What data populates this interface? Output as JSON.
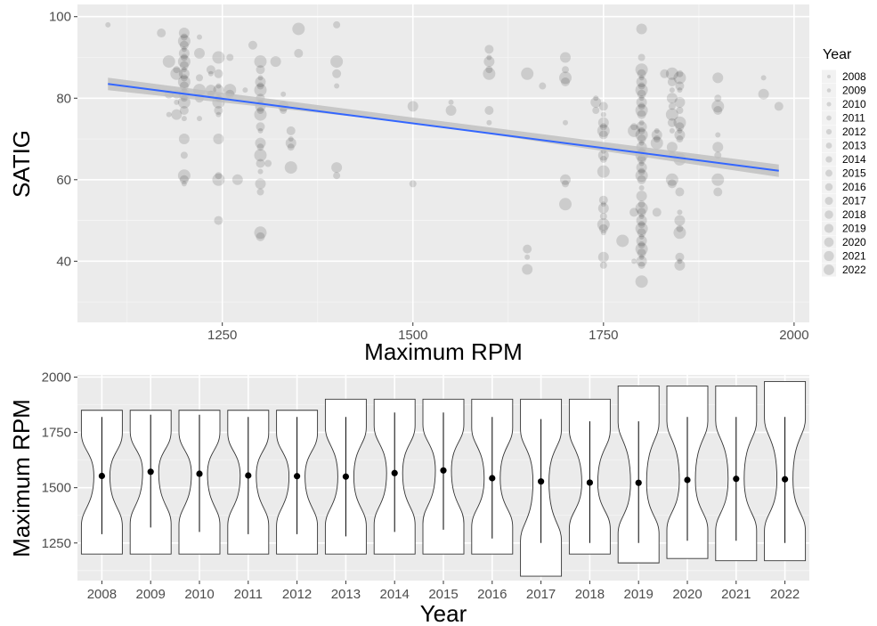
{
  "chart_data": [
    {
      "type": "scatter",
      "xlabel": "Maximum RPM",
      "ylabel": "SATIG",
      "xlim": [
        1060,
        2020
      ],
      "ylim": [
        25,
        103
      ],
      "xticks": [
        1250,
        1500,
        1750,
        2000
      ],
      "yticks": [
        40,
        60,
        80,
        100
      ],
      "grid": true,
      "legend": {
        "title": "Year",
        "position": "right",
        "entries": [
          "2008",
          "2009",
          "2010",
          "2011",
          "2012",
          "2013",
          "2014",
          "2015",
          "2016",
          "2017",
          "2018",
          "2019",
          "2020",
          "2021",
          "2022"
        ]
      },
      "trend_line": {
        "x": [
          1100,
          1980
        ],
        "y": [
          83.5,
          62.2
        ],
        "color": "#3366ff",
        "band_color": "#bebebe"
      },
      "point_color": "#000000",
      "groups": [
        {
          "x": 1100,
          "y": [
            98
          ]
        },
        {
          "x": 1170,
          "y": [
            96
          ]
        },
        {
          "x": 1180,
          "y": [
            89,
            81,
            76
          ]
        },
        {
          "x": 1190,
          "y": [
            87,
            86,
            81,
            79,
            76
          ]
        },
        {
          "x": 1200,
          "y": [
            96,
            95,
            94,
            93,
            92,
            91,
            90,
            89,
            88,
            87,
            86,
            85,
            84,
            83,
            82,
            81,
            80,
            79,
            77,
            75,
            70,
            66,
            61,
            60,
            59
          ]
        },
        {
          "x": 1220,
          "y": [
            95,
            91,
            85,
            82,
            80,
            75
          ]
        },
        {
          "x": 1235,
          "y": [
            87,
            86,
            82,
            81
          ]
        },
        {
          "x": 1245,
          "y": [
            90,
            86,
            83,
            82,
            80,
            79,
            77,
            76,
            70,
            61,
            60,
            50
          ]
        },
        {
          "x": 1260,
          "y": [
            90,
            82,
            81
          ]
        },
        {
          "x": 1270,
          "y": [
            60
          ]
        },
        {
          "x": 1280,
          "y": [
            82
          ]
        },
        {
          "x": 1290,
          "y": [
            93
          ]
        },
        {
          "x": 1300,
          "y": [
            89,
            87,
            85,
            84,
            83,
            82,
            80,
            79,
            78,
            77,
            76,
            73,
            72,
            69,
            68,
            66,
            64,
            62,
            59,
            57,
            47,
            46
          ]
        },
        {
          "x": 1310,
          "y": [
            64
          ]
        },
        {
          "x": 1320,
          "y": [
            89
          ]
        },
        {
          "x": 1330,
          "y": [
            81,
            78,
            77
          ]
        },
        {
          "x": 1340,
          "y": [
            72,
            70,
            69,
            68,
            63
          ]
        },
        {
          "x": 1350,
          "y": [
            97,
            91
          ]
        },
        {
          "x": 1400,
          "y": [
            98,
            89,
            86,
            83,
            63,
            61
          ]
        },
        {
          "x": 1500,
          "y": [
            78,
            59
          ]
        },
        {
          "x": 1550,
          "y": [
            79,
            77
          ]
        },
        {
          "x": 1600,
          "y": [
            92,
            90,
            89,
            87,
            86,
            77,
            74
          ]
        },
        {
          "x": 1650,
          "y": [
            86,
            43,
            41,
            38
          ]
        },
        {
          "x": 1670,
          "y": [
            83
          ]
        },
        {
          "x": 1700,
          "y": [
            90,
            87,
            85,
            84,
            74,
            60,
            59,
            54
          ]
        },
        {
          "x": 1740,
          "y": [
            80,
            79,
            77
          ]
        },
        {
          "x": 1750,
          "y": [
            78,
            76,
            74,
            73,
            72,
            71,
            67,
            66,
            65,
            62,
            55,
            54,
            53,
            51,
            49,
            48,
            47,
            41,
            39
          ]
        },
        {
          "x": 1775,
          "y": [
            45
          ]
        },
        {
          "x": 1790,
          "y": [
            73,
            72,
            52,
            40
          ]
        },
        {
          "x": 1800,
          "y": [
            97,
            90,
            87,
            86,
            85,
            84,
            83,
            82,
            81,
            80,
            79,
            78,
            77,
            76,
            74,
            73,
            72,
            71,
            70,
            69,
            68,
            67,
            66,
            65,
            64,
            63,
            62,
            61,
            60,
            58,
            56,
            54,
            53,
            52,
            51,
            50,
            49,
            48,
            47,
            46,
            45,
            44,
            43,
            42,
            41,
            40,
            39,
            35
          ]
        },
        {
          "x": 1820,
          "y": [
            72,
            71,
            70,
            69,
            52
          ]
        },
        {
          "x": 1830,
          "y": [
            86
          ]
        },
        {
          "x": 1840,
          "y": [
            86,
            84,
            82,
            80,
            78,
            76,
            74,
            72,
            68,
            66,
            60,
            59
          ]
        },
        {
          "x": 1850,
          "y": [
            86,
            85,
            83,
            82,
            79,
            77,
            74,
            73,
            72,
            71,
            70,
            65,
            57,
            52,
            50,
            48,
            47,
            41,
            40,
            39
          ]
        },
        {
          "x": 1900,
          "y": [
            85,
            80,
            78,
            77,
            71,
            68,
            66,
            60,
            57
          ]
        },
        {
          "x": 1960,
          "y": [
            85,
            81
          ]
        },
        {
          "x": 1980,
          "y": [
            78
          ]
        }
      ]
    },
    {
      "type": "violin",
      "xlabel": "Year",
      "ylabel": "Maximum RPM",
      "ylim": [
        1080,
        2010
      ],
      "yticks": [
        1250,
        1500,
        1750,
        2000
      ],
      "grid": true,
      "categories": [
        "2008",
        "2009",
        "2010",
        "2011",
        "2012",
        "2013",
        "2014",
        "2015",
        "2016",
        "2017",
        "2018",
        "2019",
        "2020",
        "2021",
        "2022"
      ],
      "violins": [
        {
          "min": 1200,
          "max": 1850,
          "whisker_low": 1290,
          "whisker_high": 1820,
          "mean": 1553
        },
        {
          "min": 1200,
          "max": 1850,
          "whisker_low": 1320,
          "whisker_high": 1830,
          "mean": 1572
        },
        {
          "min": 1200,
          "max": 1850,
          "whisker_low": 1300,
          "whisker_high": 1830,
          "mean": 1563
        },
        {
          "min": 1200,
          "max": 1850,
          "whisker_low": 1290,
          "whisker_high": 1820,
          "mean": 1555
        },
        {
          "min": 1200,
          "max": 1850,
          "whisker_low": 1290,
          "whisker_high": 1820,
          "mean": 1552
        },
        {
          "min": 1200,
          "max": 1900,
          "whisker_low": 1280,
          "whisker_high": 1820,
          "mean": 1550
        },
        {
          "min": 1200,
          "max": 1900,
          "whisker_low": 1300,
          "whisker_high": 1840,
          "mean": 1566
        },
        {
          "min": 1200,
          "max": 1900,
          "whisker_low": 1310,
          "whisker_high": 1840,
          "mean": 1578
        },
        {
          "min": 1200,
          "max": 1900,
          "whisker_low": 1270,
          "whisker_high": 1820,
          "mean": 1543
        },
        {
          "min": 1100,
          "max": 1900,
          "whisker_low": 1250,
          "whisker_high": 1810,
          "mean": 1528
        },
        {
          "min": 1200,
          "max": 1900,
          "whisker_low": 1250,
          "whisker_high": 1800,
          "mean": 1523
        },
        {
          "min": 1160,
          "max": 1960,
          "whisker_low": 1250,
          "whisker_high": 1800,
          "mean": 1522
        },
        {
          "min": 1180,
          "max": 1960,
          "whisker_low": 1260,
          "whisker_high": 1820,
          "mean": 1535
        },
        {
          "min": 1170,
          "max": 1960,
          "whisker_low": 1260,
          "whisker_high": 1820,
          "mean": 1540
        },
        {
          "min": 1170,
          "max": 1980,
          "whisker_low": 1250,
          "whisker_high": 1820,
          "mean": 1538
        }
      ]
    }
  ]
}
